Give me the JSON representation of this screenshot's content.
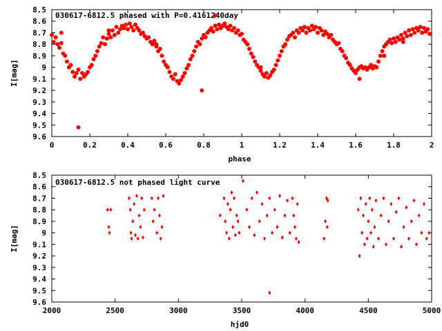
{
  "chart_data": [
    {
      "type": "scatter",
      "title": "030617-6812.5 phased with P=0.4161240day",
      "xlabel": "phase",
      "ylabel": "I[mag]",
      "xlim": [
        0,
        2
      ],
      "ylim": [
        8.5,
        9.6
      ],
      "y_inverted": true,
      "xticks": [
        "0",
        "0.2",
        "0.4",
        "0.6",
        "0.8",
        "1",
        "1.2",
        "1.4",
        "1.6",
        "1.8",
        "2"
      ],
      "yticks": [
        "8.5",
        "8.6",
        "8.7",
        "8.8",
        "8.9",
        "9",
        "9.1",
        "9.2",
        "9.3",
        "9.4",
        "9.5",
        "9.6"
      ],
      "marker": "filled-circle",
      "color": "#ff0000",
      "grid": false,
      "points": [
        [
          0.0,
          8.72
        ],
        [
          0.01,
          8.78
        ],
        [
          0.02,
          8.74
        ],
        [
          0.03,
          8.8
        ],
        [
          0.04,
          8.83
        ],
        [
          0.05,
          8.79
        ],
        [
          0.06,
          8.88
        ],
        [
          0.07,
          8.9
        ],
        [
          0.08,
          8.95
        ],
        [
          0.09,
          9.0
        ],
        [
          0.1,
          8.98
        ],
        [
          0.11,
          9.04
        ],
        [
          0.12,
          9.08
        ],
        [
          0.13,
          9.05
        ],
        [
          0.14,
          9.02
        ],
        [
          0.15,
          9.1
        ],
        [
          0.16,
          9.05
        ],
        [
          0.17,
          9.08
        ],
        [
          0.18,
          9.06
        ],
        [
          0.19,
          9.04
        ],
        [
          0.2,
          9.0
        ],
        [
          0.21,
          8.98
        ],
        [
          0.22,
          8.93
        ],
        [
          0.23,
          8.9
        ],
        [
          0.24,
          8.86
        ],
        [
          0.25,
          8.82
        ],
        [
          0.26,
          8.79
        ],
        [
          0.27,
          8.74
        ],
        [
          0.28,
          8.8
        ],
        [
          0.29,
          8.75
        ],
        [
          0.3,
          8.71
        ],
        [
          0.31,
          8.74
        ],
        [
          0.32,
          8.68
        ],
        [
          0.33,
          8.72
        ],
        [
          0.34,
          8.65
        ],
        [
          0.35,
          8.7
        ],
        [
          0.36,
          8.67
        ],
        [
          0.37,
          8.64
        ],
        [
          0.38,
          8.66
        ],
        [
          0.39,
          8.63
        ],
        [
          0.4,
          8.67
        ],
        [
          0.41,
          8.62
        ],
        [
          0.42,
          8.65
        ],
        [
          0.43,
          8.68
        ],
        [
          0.44,
          8.63
        ],
        [
          0.45,
          8.66
        ],
        [
          0.46,
          8.68
        ],
        [
          0.47,
          8.71
        ],
        [
          0.48,
          8.7
        ],
        [
          0.49,
          8.73
        ],
        [
          0.5,
          8.75
        ],
        [
          0.51,
          8.74
        ],
        [
          0.52,
          8.78
        ],
        [
          0.53,
          8.8
        ],
        [
          0.54,
          8.77
        ],
        [
          0.55,
          8.82
        ],
        [
          0.56,
          8.86
        ],
        [
          0.57,
          8.84
        ],
        [
          0.58,
          8.9
        ],
        [
          0.59,
          8.95
        ],
        [
          0.6,
          8.98
        ],
        [
          0.61,
          9.0
        ],
        [
          0.62,
          9.04
        ],
        [
          0.63,
          9.08
        ],
        [
          0.64,
          9.1
        ],
        [
          0.65,
          9.06
        ],
        [
          0.66,
          9.12
        ],
        [
          0.67,
          9.14
        ],
        [
          0.68,
          9.11
        ],
        [
          0.69,
          9.08
        ],
        [
          0.7,
          9.05
        ],
        [
          0.71,
          9.01
        ],
        [
          0.72,
          8.98
        ],
        [
          0.73,
          8.93
        ],
        [
          0.74,
          8.9
        ],
        [
          0.75,
          8.86
        ],
        [
          0.76,
          8.82
        ],
        [
          0.77,
          8.78
        ],
        [
          0.78,
          8.8
        ],
        [
          0.79,
          8.75
        ],
        [
          0.8,
          8.72
        ],
        [
          0.81,
          8.74
        ],
        [
          0.82,
          8.7
        ],
        [
          0.83,
          8.68
        ],
        [
          0.84,
          8.66
        ],
        [
          0.85,
          8.69
        ],
        [
          0.86,
          8.64
        ],
        [
          0.87,
          8.67
        ],
        [
          0.88,
          8.63
        ],
        [
          0.89,
          8.66
        ],
        [
          0.9,
          8.64
        ],
        [
          0.91,
          8.62
        ],
        [
          0.92,
          8.65
        ],
        [
          0.93,
          8.67
        ],
        [
          0.94,
          8.64
        ],
        [
          0.95,
          8.68
        ],
        [
          0.96,
          8.66
        ],
        [
          0.97,
          8.7
        ],
        [
          0.98,
          8.68
        ],
        [
          0.99,
          8.72
        ],
        [
          1.0,
          8.71
        ],
        [
          1.01,
          8.76
        ],
        [
          1.02,
          8.78
        ],
        [
          1.03,
          8.8
        ],
        [
          1.04,
          8.84
        ],
        [
          1.05,
          8.88
        ],
        [
          1.06,
          8.91
        ],
        [
          1.07,
          8.95
        ],
        [
          1.08,
          8.98
        ],
        [
          1.09,
          9.0
        ],
        [
          1.1,
          9.03
        ],
        [
          1.11,
          9.06
        ],
        [
          1.12,
          9.08
        ],
        [
          1.13,
          9.05
        ],
        [
          1.14,
          9.09
        ],
        [
          1.15,
          9.07
        ],
        [
          1.16,
          9.04
        ],
        [
          1.17,
          9.02
        ],
        [
          1.18,
          8.98
        ],
        [
          1.19,
          8.94
        ],
        [
          1.2,
          8.9
        ],
        [
          1.21,
          8.86
        ],
        [
          1.22,
          8.82
        ],
        [
          1.23,
          8.8
        ],
        [
          1.24,
          8.76
        ],
        [
          1.25,
          8.73
        ],
        [
          1.26,
          8.72
        ],
        [
          1.27,
          8.7
        ],
        [
          1.28,
          8.74
        ],
        [
          1.29,
          8.68
        ],
        [
          1.3,
          8.7
        ],
        [
          1.31,
          8.66
        ],
        [
          1.32,
          8.68
        ],
        [
          1.33,
          8.65
        ],
        [
          1.34,
          8.7
        ],
        [
          1.35,
          8.66
        ],
        [
          1.36,
          8.68
        ],
        [
          1.37,
          8.64
        ],
        [
          1.38,
          8.67
        ],
        [
          1.39,
          8.65
        ],
        [
          1.4,
          8.7
        ],
        [
          1.41,
          8.66
        ],
        [
          1.42,
          8.68
        ],
        [
          1.43,
          8.72
        ],
        [
          1.44,
          8.69
        ],
        [
          1.45,
          8.71
        ],
        [
          1.46,
          8.74
        ],
        [
          1.47,
          8.72
        ],
        [
          1.48,
          8.76
        ],
        [
          1.49,
          8.78
        ],
        [
          1.5,
          8.8
        ],
        [
          1.51,
          8.79
        ],
        [
          1.52,
          8.84
        ],
        [
          1.53,
          8.86
        ],
        [
          1.54,
          8.9
        ],
        [
          1.55,
          8.92
        ],
        [
          1.56,
          8.96
        ],
        [
          1.57,
          8.98
        ],
        [
          1.58,
          9.01
        ],
        [
          1.59,
          9.03
        ],
        [
          1.6,
          9.05
        ],
        [
          1.61,
          9.02
        ],
        [
          1.62,
          9.0
        ],
        [
          1.63,
          8.99
        ],
        [
          1.64,
          9.01
        ],
        [
          1.65,
          9.0
        ],
        [
          1.66,
          9.02
        ],
        [
          1.67,
          9.0
        ],
        [
          1.68,
          8.98
        ],
        [
          1.69,
          9.01
        ],
        [
          1.7,
          8.99
        ],
        [
          1.71,
          9.0
        ],
        [
          1.72,
          8.95
        ],
        [
          1.73,
          8.9
        ],
        [
          1.74,
          8.86
        ],
        [
          1.75,
          8.82
        ],
        [
          1.76,
          8.8
        ],
        [
          1.77,
          8.78
        ],
        [
          1.78,
          8.76
        ],
        [
          1.79,
          8.79
        ],
        [
          1.8,
          8.75
        ],
        [
          1.81,
          8.78
        ],
        [
          1.82,
          8.74
        ],
        [
          1.83,
          8.76
        ],
        [
          1.84,
          8.72
        ],
        [
          1.85,
          8.75
        ],
        [
          1.86,
          8.7
        ],
        [
          1.87,
          8.73
        ],
        [
          1.88,
          8.68
        ],
        [
          1.89,
          8.72
        ],
        [
          1.9,
          8.67
        ],
        [
          1.91,
          8.7
        ],
        [
          1.92,
          8.66
        ],
        [
          1.93,
          8.68
        ],
        [
          1.94,
          8.65
        ],
        [
          1.95,
          8.7
        ],
        [
          1.96,
          8.66
        ],
        [
          1.97,
          8.69
        ],
        [
          1.98,
          8.67
        ],
        [
          1.99,
          8.71
        ],
        [
          0.14,
          9.52
        ],
        [
          0.79,
          9.2
        ],
        [
          0.05,
          8.7
        ],
        [
          0.3,
          8.68
        ],
        [
          0.55,
          8.8
        ],
        [
          1.1,
          9.0
        ],
        [
          1.62,
          9.1
        ],
        [
          1.75,
          8.9
        ],
        [
          1.85,
          8.78
        ],
        [
          0.86,
          8.55
        ]
      ]
    },
    {
      "type": "scatter",
      "title": "030617-6812.5 not phased light curve",
      "xlabel": "hjd0",
      "ylabel": "I[mag]",
      "xlim": [
        2000,
        5000
      ],
      "ylim": [
        8.5,
        9.6
      ],
      "y_inverted": true,
      "xticks": [
        "2000",
        "2500",
        "3000",
        "3500",
        "4000",
        "4500",
        "5000"
      ],
      "yticks": [
        "8.5",
        "8.6",
        "8.7",
        "8.8",
        "8.9",
        "9",
        "9.1",
        "9.2",
        "9.3",
        "9.4",
        "9.5",
        "9.6"
      ],
      "marker": "diamond",
      "color": "#ff0000",
      "grid": false,
      "points": [
        [
          2440,
          8.8
        ],
        [
          2450,
          8.95
        ],
        [
          2455,
          9.0
        ],
        [
          2465,
          8.8
        ],
        [
          2610,
          8.7
        ],
        [
          2620,
          8.8
        ],
        [
          2625,
          9.0
        ],
        [
          2630,
          9.05
        ],
        [
          2640,
          8.9
        ],
        [
          2650,
          8.75
        ],
        [
          2660,
          9.02
        ],
        [
          2670,
          8.68
        ],
        [
          2680,
          9.05
        ],
        [
          2690,
          8.85
        ],
        [
          2700,
          8.95
        ],
        [
          2710,
          8.7
        ],
        [
          2720,
          9.04
        ],
        [
          2730,
          8.8
        ],
        [
          2790,
          8.7
        ],
        [
          2800,
          8.9
        ],
        [
          2810,
          8.8
        ],
        [
          2830,
          9.0
        ],
        [
          2840,
          8.7
        ],
        [
          2850,
          8.85
        ],
        [
          2860,
          9.05
        ],
        [
          2870,
          8.95
        ],
        [
          2880,
          8.68
        ],
        [
          3330,
          8.85
        ],
        [
          3360,
          8.7
        ],
        [
          3370,
          8.9
        ],
        [
          3380,
          9.0
        ],
        [
          3390,
          8.75
        ],
        [
          3400,
          9.05
        ],
        [
          3410,
          8.8
        ],
        [
          3420,
          8.65
        ],
        [
          3430,
          8.95
        ],
        [
          3440,
          8.7
        ],
        [
          3450,
          9.02
        ],
        [
          3460,
          8.85
        ],
        [
          3470,
          8.9
        ],
        [
          3480,
          9.0
        ],
        [
          3510,
          8.55
        ],
        [
          3540,
          8.8
        ],
        [
          3560,
          8.95
        ],
        [
          3580,
          8.7
        ],
        [
          3600,
          9.02
        ],
        [
          3620,
          8.65
        ],
        [
          3640,
          8.9
        ],
        [
          3660,
          8.75
        ],
        [
          3680,
          9.05
        ],
        [
          3700,
          8.85
        ],
        [
          3720,
          8.7
        ],
        [
          3740,
          9.0
        ],
        [
          3760,
          8.8
        ],
        [
          3780,
          8.95
        ],
        [
          3800,
          8.68
        ],
        [
          3820,
          9.04
        ],
        [
          3840,
          8.85
        ],
        [
          3860,
          8.72
        ],
        [
          3880,
          9.0
        ],
        [
          3720,
          9.52
        ],
        [
          3900,
          8.7
        ],
        [
          3910,
          8.85
        ],
        [
          3920,
          8.95
        ],
        [
          3930,
          9.05
        ],
        [
          3940,
          8.75
        ],
        [
          3950,
          9.08
        ],
        [
          4150,
          9.05
        ],
        [
          4160,
          8.9
        ],
        [
          4170,
          8.7
        ],
        [
          4175,
          8.95
        ],
        [
          4180,
          8.72
        ],
        [
          4420,
          8.8
        ],
        [
          4430,
          9.2
        ],
        [
          4440,
          8.7
        ],
        [
          4450,
          9.0
        ],
        [
          4460,
          8.85
        ],
        [
          4470,
          9.1
        ],
        [
          4480,
          8.75
        ],
        [
          4490,
          9.05
        ],
        [
          4500,
          8.9
        ],
        [
          4510,
          8.7
        ],
        [
          4520,
          9.0
        ],
        [
          4530,
          8.8
        ],
        [
          4540,
          9.12
        ],
        [
          4550,
          8.95
        ],
        [
          4560,
          8.72
        ],
        [
          4580,
          9.05
        ],
        [
          4600,
          8.85
        ],
        [
          4620,
          8.7
        ],
        [
          4640,
          9.1
        ],
        [
          4660,
          8.9
        ],
        [
          4680,
          8.75
        ],
        [
          4700,
          9.05
        ],
        [
          4720,
          8.82
        ],
        [
          4740,
          8.7
        ],
        [
          4760,
          9.12
        ],
        [
          4780,
          8.95
        ],
        [
          4800,
          8.78
        ],
        [
          4820,
          9.05
        ],
        [
          4840,
          8.9
        ],
        [
          4860,
          8.72
        ],
        [
          4880,
          9.1
        ],
        [
          4900,
          8.85
        ],
        [
          4920,
          9.0
        ],
        [
          4940,
          8.75
        ],
        [
          4960,
          9.05
        ],
        [
          4980,
          9.0
        ]
      ]
    }
  ]
}
